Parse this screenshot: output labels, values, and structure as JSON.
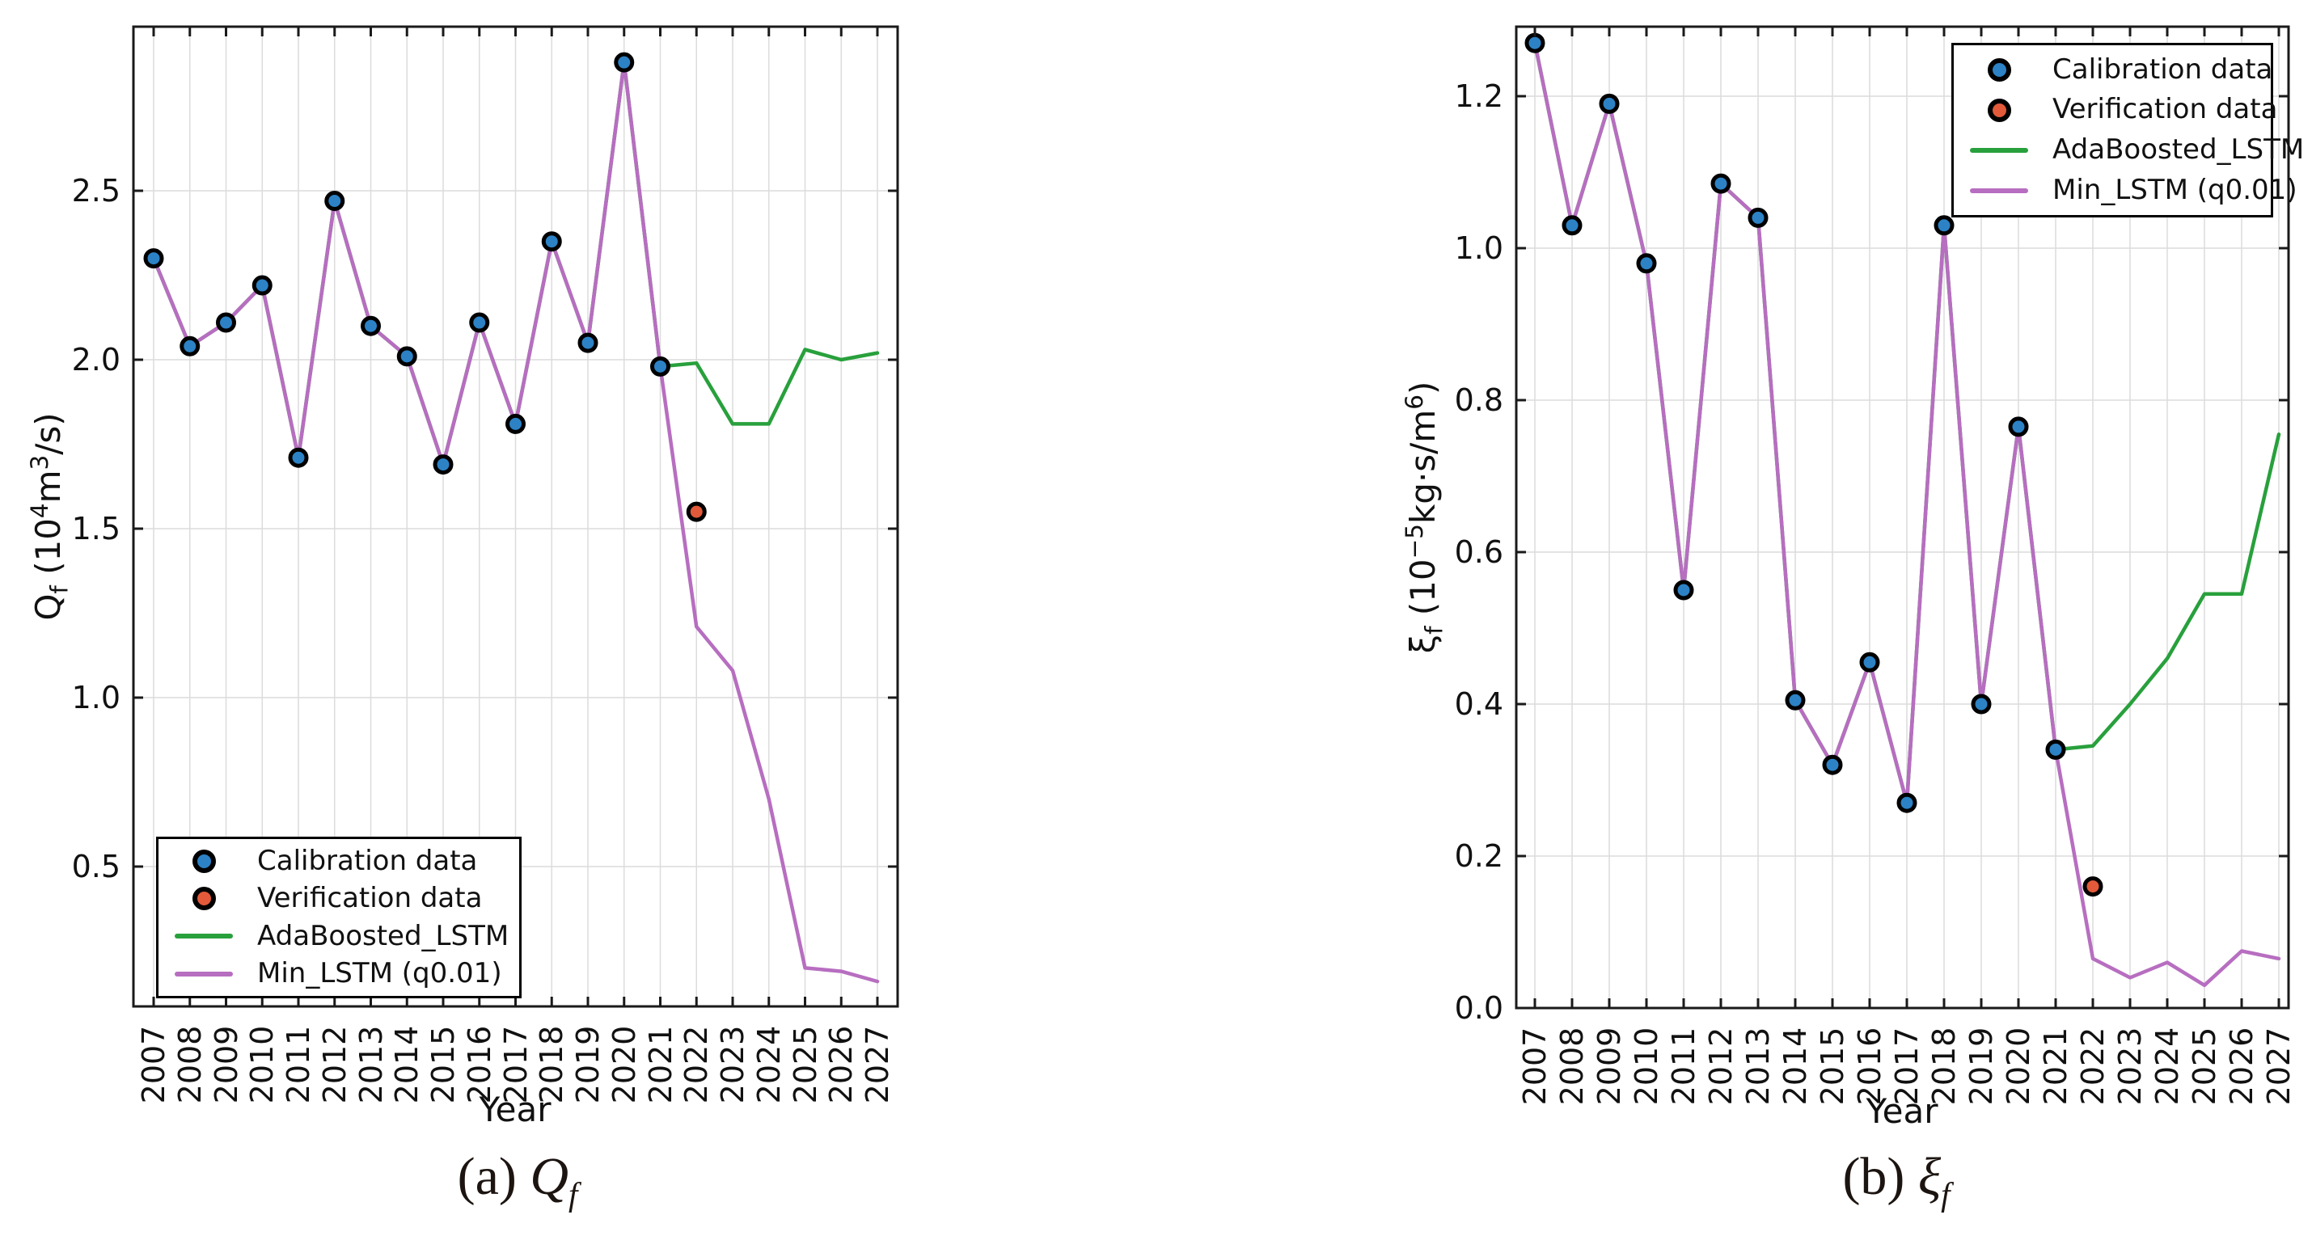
{
  "page": {
    "background": "#ffffff"
  },
  "colors": {
    "calibration_marker": "#2c82c5",
    "verification_marker": "#e25a3a",
    "adaboost_line": "#28a03c",
    "min_lstm_line": "#b76ec0",
    "marker_edge": "#000000",
    "grid": "#dcdcdc",
    "spine": "#1a1a1a",
    "text": "#111111"
  },
  "chart_data": [
    {
      "type": "line",
      "panel": "a",
      "caption_segments": [
        {
          "t": "(a) "
        },
        {
          "t": "Q",
          "italic": true
        },
        {
          "t": "f",
          "sub": true,
          "italic": true
        }
      ],
      "xlabel": "Year",
      "ylabel_segments": [
        {
          "t": "Q"
        },
        {
          "t": "f",
          "sub": true
        },
        {
          "t": " (10"
        },
        {
          "t": "4",
          "sup": true
        },
        {
          "t": "m"
        },
        {
          "t": "3",
          "sup": true
        },
        {
          "t": "/s)"
        }
      ],
      "x": [
        2007,
        2008,
        2009,
        2010,
        2011,
        2012,
        2013,
        2014,
        2015,
        2016,
        2017,
        2018,
        2019,
        2020,
        2021,
        2022,
        2023,
        2024,
        2025,
        2026,
        2027
      ],
      "xticklabels": [
        "2007",
        "2008",
        "2009",
        "2010",
        "2011",
        "2012",
        "2013",
        "2014",
        "2015",
        "2016",
        "2017",
        "2018",
        "2019",
        "2020",
        "2021",
        "2022",
        "2023",
        "2024",
        "2025",
        "2026",
        "2027"
      ],
      "yticks": [
        0.5,
        1.0,
        1.5,
        2.0,
        2.5
      ],
      "yticklabels": [
        "0.5",
        "1.0",
        "1.5",
        "2.0",
        "2.5"
      ],
      "ylim": [
        0.09,
        2.99
      ],
      "grid": true,
      "legend_position": "lower left",
      "series": [
        {
          "name": "Calibration data",
          "type": "scatter",
          "color": "#2c82c5",
          "x": [
            2007,
            2008,
            2009,
            2010,
            2011,
            2012,
            2013,
            2014,
            2015,
            2016,
            2017,
            2018,
            2019,
            2020,
            2021
          ],
          "y": [
            2.3,
            2.04,
            2.11,
            2.22,
            1.71,
            2.47,
            2.1,
            2.01,
            1.69,
            2.11,
            1.81,
            2.35,
            2.05,
            2.88,
            1.98
          ]
        },
        {
          "name": "Verification data",
          "type": "scatter",
          "color": "#e25a3a",
          "x": [
            2022
          ],
          "y": [
            1.55
          ]
        },
        {
          "name": "AdaBoosted_LSTM",
          "type": "line",
          "color": "#28a03c",
          "x": [
            2007,
            2008,
            2009,
            2010,
            2011,
            2012,
            2013,
            2014,
            2015,
            2016,
            2017,
            2018,
            2019,
            2020,
            2021,
            2022,
            2023,
            2024,
            2025,
            2026,
            2027
          ],
          "y": [
            2.3,
            2.04,
            2.11,
            2.22,
            1.71,
            2.47,
            2.1,
            2.01,
            1.69,
            2.11,
            1.81,
            2.35,
            2.05,
            2.88,
            1.98,
            1.99,
            1.81,
            1.81,
            2.03,
            2.0,
            2.02
          ]
        },
        {
          "name": "Min_LSTM (q0.01)",
          "type": "line",
          "color": "#b76ec0",
          "x": [
            2007,
            2008,
            2009,
            2010,
            2011,
            2012,
            2013,
            2014,
            2015,
            2016,
            2017,
            2018,
            2019,
            2020,
            2021,
            2022,
            2023,
            2024,
            2025,
            2026,
            2027
          ],
          "y": [
            2.3,
            2.04,
            2.11,
            2.22,
            1.71,
            2.47,
            2.1,
            2.01,
            1.69,
            2.11,
            1.81,
            2.35,
            2.05,
            2.88,
            1.98,
            1.21,
            1.08,
            0.7,
            0.2,
            0.19,
            0.16
          ]
        }
      ]
    },
    {
      "type": "line",
      "panel": "b",
      "caption_segments": [
        {
          "t": "(b) "
        },
        {
          "t": "ξ",
          "italic": true
        },
        {
          "t": "f",
          "sub": true,
          "italic": true
        }
      ],
      "xlabel": "Year",
      "ylabel_segments": [
        {
          "t": "ξ"
        },
        {
          "t": "f",
          "sub": true
        },
        {
          "t": " (10"
        },
        {
          "t": "−5",
          "sup": true
        },
        {
          "t": "kg·s/m"
        },
        {
          "t": "6",
          "sup": true
        },
        {
          "t": ")"
        }
      ],
      "x": [
        2007,
        2008,
        2009,
        2010,
        2011,
        2012,
        2013,
        2014,
        2015,
        2016,
        2017,
        2018,
        2019,
        2020,
        2021,
        2022,
        2023,
        2024,
        2025,
        2026,
        2027
      ],
      "xticklabels": [
        "2007",
        "2008",
        "2009",
        "2010",
        "2011",
        "2012",
        "2013",
        "2014",
        "2015",
        "2016",
        "2017",
        "2018",
        "2019",
        "2020",
        "2021",
        "2022",
        "2023",
        "2024",
        "2025",
        "2026",
        "2027"
      ],
      "yticks": [
        0.0,
        0.2,
        0.4,
        0.6,
        0.8,
        1.0,
        1.2
      ],
      "yticklabels": [
        "0.0",
        "0.2",
        "0.4",
        "0.6",
        "0.8",
        "1.0",
        "1.2"
      ],
      "ylim": [
        0.0,
        1.29
      ],
      "grid": true,
      "legend_position": "upper right",
      "series": [
        {
          "name": "Calibration data",
          "type": "scatter",
          "color": "#2c82c5",
          "x": [
            2007,
            2008,
            2009,
            2010,
            2011,
            2012,
            2013,
            2014,
            2015,
            2016,
            2017,
            2018,
            2019,
            2020,
            2021
          ],
          "y": [
            1.27,
            1.03,
            1.19,
            0.98,
            0.55,
            1.085,
            1.04,
            0.405,
            0.32,
            0.455,
            0.27,
            1.03,
            0.4,
            0.765,
            0.34
          ]
        },
        {
          "name": "Verification data",
          "type": "scatter",
          "color": "#e25a3a",
          "x": [
            2022
          ],
          "y": [
            0.16
          ]
        },
        {
          "name": "AdaBoosted_LSTM",
          "type": "line",
          "color": "#28a03c",
          "x": [
            2007,
            2008,
            2009,
            2010,
            2011,
            2012,
            2013,
            2014,
            2015,
            2016,
            2017,
            2018,
            2019,
            2020,
            2021,
            2022,
            2023,
            2024,
            2025,
            2026,
            2027
          ],
          "y": [
            1.27,
            1.03,
            1.19,
            0.98,
            0.55,
            1.085,
            1.04,
            0.405,
            0.32,
            0.455,
            0.27,
            1.03,
            0.4,
            0.765,
            0.34,
            0.345,
            0.4,
            0.46,
            0.545,
            0.545,
            0.755
          ]
        },
        {
          "name": "Min_LSTM (q0.01)",
          "type": "line",
          "color": "#b76ec0",
          "x": [
            2007,
            2008,
            2009,
            2010,
            2011,
            2012,
            2013,
            2014,
            2015,
            2016,
            2017,
            2018,
            2019,
            2020,
            2021,
            2022,
            2023,
            2024,
            2025,
            2026,
            2027
          ],
          "y": [
            1.27,
            1.03,
            1.19,
            0.98,
            0.55,
            1.085,
            1.04,
            0.405,
            0.32,
            0.455,
            0.27,
            1.03,
            0.4,
            0.765,
            0.34,
            0.065,
            0.04,
            0.06,
            0.03,
            0.075,
            0.065
          ]
        }
      ]
    }
  ]
}
